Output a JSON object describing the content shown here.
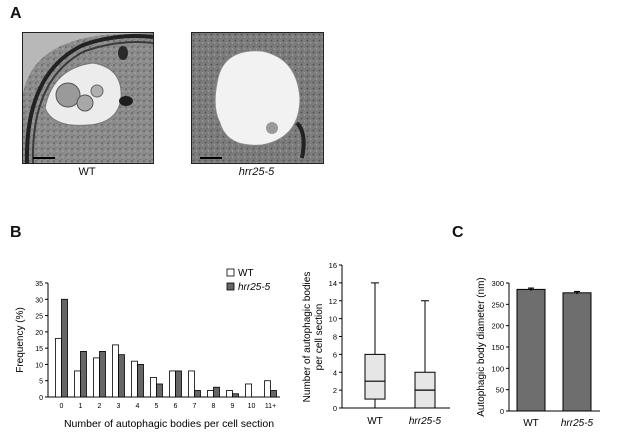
{
  "panels": {
    "a": {
      "letter": "A",
      "images": [
        {
          "caption": "WT",
          "italic": false
        },
        {
          "caption": "hrr25-5",
          "italic": true
        }
      ]
    },
    "b": {
      "letter": "B"
    },
    "c": {
      "letter": "C"
    }
  },
  "chart_data": [
    {
      "id": "B-histogram",
      "type": "bar",
      "xlabel": "Number of autophagic bodies per cell section",
      "ylabel": "Frequency (%)",
      "ylim": [
        0,
        35
      ],
      "yticks": [
        0,
        5,
        10,
        15,
        20,
        25,
        30,
        35
      ],
      "categories": [
        "0",
        "1",
        "2",
        "3",
        "4",
        "5",
        "6",
        "7",
        "8",
        "9",
        "10",
        "11+"
      ],
      "legend_position": "top-right",
      "series": [
        {
          "name": "WT",
          "color": "#ffffff",
          "values": [
            18,
            8,
            12,
            16,
            11,
            6,
            8,
            8,
            2,
            2,
            4,
            5
          ]
        },
        {
          "name": "hrr25-5",
          "color": "#666666",
          "values": [
            30,
            14,
            14,
            13,
            10,
            4,
            8,
            2,
            3,
            1,
            0,
            2
          ]
        }
      ]
    },
    {
      "id": "B-boxplot",
      "type": "box",
      "ylabel_lines": [
        "Number of autophagic bodies",
        "per cell section"
      ],
      "ylim": [
        0,
        16
      ],
      "yticks": [
        0,
        2,
        4,
        6,
        8,
        10,
        12,
        14,
        16
      ],
      "categories": [
        "WT",
        "hrr25-5"
      ],
      "boxes": [
        {
          "label": "WT",
          "min": 0,
          "q1": 1,
          "median": 3,
          "q3": 6,
          "max": 14
        },
        {
          "label": "hrr25-5",
          "min": 0,
          "q1": 0,
          "median": 2,
          "q3": 4,
          "max": 12
        }
      ],
      "box_color": "#e6e6e6"
    },
    {
      "id": "C-bar",
      "type": "bar",
      "ylabel": "Autophagic body diameter (nm)",
      "ylim": [
        0,
        300
      ],
      "yticks": [
        0,
        50,
        100,
        150,
        200,
        250,
        300
      ],
      "categories": [
        "WT",
        "hrr25-5"
      ],
      "values": [
        285,
        277
      ],
      "errors": [
        3,
        3
      ],
      "bar_color": "#6e6e6e"
    }
  ]
}
